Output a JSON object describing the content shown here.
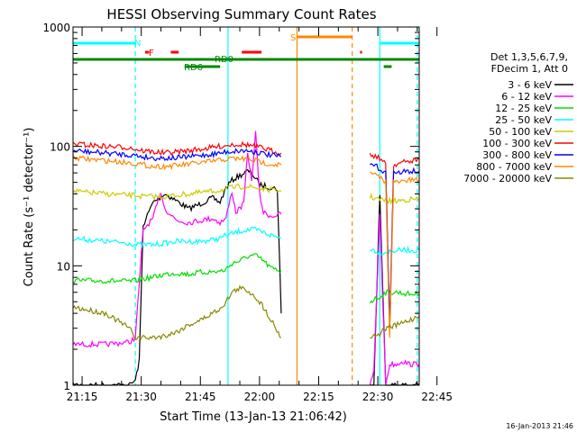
{
  "chart_data": {
    "type": "line",
    "title": "HESSI Observing Summary Count Rates",
    "xlabel": "Start Time (13-Jan-13 21:06:42)",
    "ylabel": "Count Rate (s⁻¹ detector⁻¹)",
    "ylog": true,
    "ylim": [
      1,
      1000
    ],
    "xlim_min": [
      6.7,
      94.5
    ],
    "x_unit": "minutes after 21:06",
    "x_tick_labels": [
      "21:15",
      "21:30",
      "21:45",
      "22:00",
      "22:15",
      "22:30",
      "22:45"
    ],
    "x_tick_values": [
      9,
      24,
      39,
      54,
      69,
      84,
      99
    ],
    "y_tick_labels": [
      "1",
      "10",
      "100",
      "1000"
    ],
    "y_tick_values": [
      1,
      10,
      100,
      1000
    ],
    "legend_header": [
      "Det 1,3,5,6,7,9,",
      "FDecim 1, Att 0"
    ],
    "legend_position": "right",
    "footer_date": "16-Jan-2013 21:46",
    "series": [
      {
        "name": "3 - 6 keV",
        "color": "#000000",
        "points": [
          [
            6.7,
            1.0
          ],
          [
            21,
            1.0
          ],
          [
            22.5,
            1.1
          ],
          [
            23.5,
            1.6
          ],
          [
            24.5,
            22
          ],
          [
            27,
            34
          ],
          [
            30,
            40
          ],
          [
            33,
            35
          ],
          [
            36,
            30
          ],
          [
            39,
            33
          ],
          [
            42,
            37
          ],
          [
            44,
            34
          ],
          [
            45.5,
            45
          ],
          [
            47,
            52
          ],
          [
            49,
            57
          ],
          [
            51,
            62
          ],
          [
            52,
            60
          ],
          [
            54,
            48
          ],
          [
            56,
            46
          ],
          [
            58.5,
            44
          ],
          [
            59.5,
            4
          ]
        ],
        "points2": [
          [
            82,
            1.0
          ],
          [
            83,
            1.0
          ],
          [
            84.5,
            40
          ],
          [
            86,
            1.0
          ],
          [
            87,
            1.0
          ],
          [
            89,
            1.0
          ],
          [
            90,
            1.0
          ],
          [
            94.5,
            1.0
          ]
        ]
      },
      {
        "name": "6 - 12 keV",
        "color": "#ff00ff",
        "points": [
          [
            6.7,
            2.2
          ],
          [
            15,
            2.2
          ],
          [
            21,
            2.3
          ],
          [
            22.5,
            2.5
          ],
          [
            24.5,
            20
          ],
          [
            27,
            25
          ],
          [
            29,
            42
          ],
          [
            30,
            30
          ],
          [
            33,
            24
          ],
          [
            36,
            23
          ],
          [
            39,
            24
          ],
          [
            42,
            25
          ],
          [
            44,
            23
          ],
          [
            45.5,
            25
          ],
          [
            47,
            42
          ],
          [
            48,
            28
          ],
          [
            50,
            33
          ],
          [
            51,
            90
          ],
          [
            52,
            50
          ],
          [
            53,
            130
          ],
          [
            54,
            40
          ],
          [
            55,
            28
          ],
          [
            57,
            26
          ],
          [
            59.5,
            27
          ]
        ],
        "points2": [
          [
            82,
            1.0
          ],
          [
            83,
            1.3
          ],
          [
            84.5,
            28
          ],
          [
            86,
            1.0
          ],
          [
            87,
            1.5
          ],
          [
            89,
            1.5
          ],
          [
            90,
            1.6
          ],
          [
            92,
            1.5
          ],
          [
            94.5,
            1.5
          ]
        ]
      },
      {
        "name": "12 - 25 keV",
        "color": "#00dd00",
        "points": [
          [
            6.7,
            7.5
          ],
          [
            15,
            7.5
          ],
          [
            21,
            7.4
          ],
          [
            22.5,
            7.5
          ],
          [
            24.5,
            7.8
          ],
          [
            27,
            8.0
          ],
          [
            30,
            8.5
          ],
          [
            33,
            8.7
          ],
          [
            36,
            8.5
          ],
          [
            39,
            8.8
          ],
          [
            42,
            8.9
          ],
          [
            44,
            9.0
          ],
          [
            45.5,
            9.3
          ],
          [
            47,
            10.5
          ],
          [
            49,
            11
          ],
          [
            51,
            12
          ],
          [
            53,
            12.2
          ],
          [
            55,
            11
          ],
          [
            57,
            9.5
          ],
          [
            59.5,
            9.0
          ]
        ],
        "points2": [
          [
            82,
            5.0
          ],
          [
            83,
            5.2
          ],
          [
            84.5,
            5.5
          ],
          [
            86,
            6
          ],
          [
            89,
            6
          ],
          [
            92,
            5.8
          ],
          [
            94.5,
            5.8
          ]
        ]
      },
      {
        "name": "25 - 50 keV",
        "color": "#00ffff",
        "points": [
          [
            6.7,
            17
          ],
          [
            15,
            16
          ],
          [
            21,
            15.5
          ],
          [
            22.5,
            15
          ],
          [
            24.5,
            15
          ],
          [
            27,
            15
          ],
          [
            30,
            15.5
          ],
          [
            33,
            16
          ],
          [
            36,
            16
          ],
          [
            39,
            16
          ],
          [
            42,
            16.5
          ],
          [
            44,
            17
          ],
          [
            45.5,
            18
          ],
          [
            47,
            18.5
          ],
          [
            49,
            19.5
          ],
          [
            51,
            20
          ],
          [
            53,
            20
          ],
          [
            55,
            19
          ],
          [
            57,
            18
          ],
          [
            59.5,
            17
          ]
        ],
        "points2": [
          [
            82,
            14
          ],
          [
            83,
            13.5
          ],
          [
            84.5,
            13
          ],
          [
            86,
            13
          ],
          [
            89,
            13.5
          ],
          [
            92,
            13.5
          ],
          [
            94.5,
            13.5
          ]
        ]
      },
      {
        "name": "50 - 100 keV",
        "color": "#cccc00",
        "points": [
          [
            6.7,
            42
          ],
          [
            15,
            40
          ],
          [
            21,
            39
          ],
          [
            22.5,
            39
          ],
          [
            24.5,
            38
          ],
          [
            27,
            38
          ],
          [
            30,
            38
          ],
          [
            33,
            39
          ],
          [
            36,
            40
          ],
          [
            39,
            41
          ],
          [
            42,
            42
          ],
          [
            44,
            43
          ],
          [
            45.5,
            44
          ],
          [
            47,
            45
          ],
          [
            49,
            46
          ],
          [
            51,
            46
          ],
          [
            53,
            45
          ],
          [
            55,
            44
          ],
          [
            57,
            43
          ],
          [
            59.5,
            42
          ]
        ],
        "points2": [
          [
            82,
            38
          ],
          [
            83,
            37
          ],
          [
            84.5,
            36
          ],
          [
            86,
            35
          ],
          [
            89,
            35
          ],
          [
            92,
            36
          ],
          [
            94.5,
            36
          ]
        ]
      },
      {
        "name": "100 - 300 keV",
        "color": "#ff0000",
        "points": [
          [
            6.7,
            105
          ],
          [
            15,
            100
          ],
          [
            21,
            98
          ],
          [
            22.5,
            95
          ],
          [
            24.5,
            92
          ],
          [
            27,
            90
          ],
          [
            30,
            88
          ],
          [
            33,
            90
          ],
          [
            36,
            92
          ],
          [
            39,
            95
          ],
          [
            42,
            98
          ],
          [
            44,
            100
          ],
          [
            45.5,
            102
          ],
          [
            47,
            104
          ],
          [
            49,
            104
          ],
          [
            51,
            103
          ],
          [
            53,
            100
          ],
          [
            55,
            96
          ],
          [
            57,
            92
          ],
          [
            59.5,
            88
          ]
        ],
        "points2": [
          [
            82,
            85
          ],
          [
            83,
            84
          ],
          [
            84.5,
            80
          ],
          [
            86,
            70
          ],
          [
            87,
            3
          ],
          [
            88,
            70
          ],
          [
            89,
            72
          ],
          [
            92,
            75
          ],
          [
            94.5,
            78
          ]
        ]
      },
      {
        "name": "300 - 800 keV",
        "color": "#0000ff",
        "points": [
          [
            6.7,
            92
          ],
          [
            15,
            88
          ],
          [
            21,
            85
          ],
          [
            22.5,
            84
          ],
          [
            24.5,
            82
          ],
          [
            27,
            80
          ],
          [
            30,
            80
          ],
          [
            33,
            80
          ],
          [
            36,
            82
          ],
          [
            39,
            84
          ],
          [
            42,
            86
          ],
          [
            44,
            88
          ],
          [
            45.5,
            90
          ],
          [
            47,
            91
          ],
          [
            49,
            92
          ],
          [
            51,
            92
          ],
          [
            53,
            90
          ],
          [
            55,
            87
          ],
          [
            57,
            84
          ],
          [
            59.5,
            82
          ]
        ],
        "points2": [
          [
            82,
            70
          ],
          [
            83,
            70
          ],
          [
            84.5,
            65
          ],
          [
            86,
            60
          ],
          [
            87,
            3.2
          ],
          [
            88,
            60
          ],
          [
            89,
            60
          ],
          [
            92,
            62
          ],
          [
            94.5,
            62
          ]
        ]
      },
      {
        "name": "800 - 7000 keV",
        "color": "#ff8800",
        "points": [
          [
            6.7,
            80
          ],
          [
            15,
            76
          ],
          [
            21,
            73
          ],
          [
            22.5,
            72
          ],
          [
            24.5,
            70
          ],
          [
            27,
            68
          ],
          [
            30,
            68
          ],
          [
            33,
            69
          ],
          [
            36,
            71
          ],
          [
            39,
            73
          ],
          [
            42,
            75
          ],
          [
            44,
            77
          ],
          [
            45.5,
            78
          ],
          [
            47,
            79
          ],
          [
            49,
            79
          ],
          [
            51,
            78
          ],
          [
            53,
            76
          ],
          [
            55,
            73
          ],
          [
            57,
            71
          ],
          [
            59.5,
            70
          ]
        ],
        "points2": [
          [
            82,
            60
          ],
          [
            83,
            58
          ],
          [
            84.5,
            55
          ],
          [
            86,
            50
          ],
          [
            87,
            2.6
          ],
          [
            88,
            50
          ],
          [
            89,
            50
          ],
          [
            92,
            52
          ],
          [
            94.5,
            52
          ]
        ]
      },
      {
        "name": "7000 - 20000 keV",
        "color": "#888800",
        "points": [
          [
            6.7,
            4.5
          ],
          [
            15,
            4.0
          ],
          [
            21,
            3.0
          ],
          [
            22.5,
            2.5
          ],
          [
            24.5,
            2.5
          ],
          [
            27,
            2.5
          ],
          [
            30,
            2.6
          ],
          [
            33,
            2.8
          ],
          [
            36,
            3.2
          ],
          [
            39,
            3.5
          ],
          [
            42,
            4.0
          ],
          [
            44,
            4.4
          ],
          [
            45.5,
            5.0
          ],
          [
            47,
            6.0
          ],
          [
            49,
            6.5
          ],
          [
            51,
            6.2
          ],
          [
            53,
            5.5
          ],
          [
            55,
            4.5
          ],
          [
            57,
            3.5
          ],
          [
            59.5,
            2.5
          ]
        ],
        "points2": [
          [
            82,
            2.5
          ],
          [
            83,
            2.6
          ],
          [
            84.5,
            2.7
          ],
          [
            86,
            3.0
          ],
          [
            89,
            3.2
          ],
          [
            92,
            3.5
          ],
          [
            94.5,
            3.8
          ]
        ]
      }
    ],
    "flag_bars": [
      {
        "label": "N",
        "color": "#00ffff",
        "level": 1,
        "segments": [
          [
            6.7,
            22.5
          ],
          [
            84.5,
            94.5
          ]
        ]
      },
      {
        "label": "F",
        "color": "#ff0000",
        "level": 2,
        "segments": [
          [
            25,
            26
          ],
          [
            31.5,
            33.5
          ],
          [
            49.5,
            54.5
          ],
          [
            79.5,
            80
          ]
        ]
      },
      {
        "label": "S",
        "color": "#ff8800",
        "level": 0,
        "segments": [
          [
            63.5,
            77.5
          ]
        ]
      },
      {
        "label": "RD0",
        "color": "#008800",
        "level": 3,
        "segments": [
          [
            6.7,
            94.5
          ]
        ]
      },
      {
        "label": "RD6",
        "color": "#008800",
        "level": 4,
        "segments": [
          [
            35,
            44
          ],
          [
            85.5,
            87.5
          ]
        ]
      }
    ],
    "vlines": [
      {
        "x": 22.5,
        "color": "#00ffff",
        "dashed": true
      },
      {
        "x": 46,
        "color": "#00ffff",
        "dashed": false
      },
      {
        "x": 84.5,
        "color": "#00ffff",
        "dashed": false
      },
      {
        "x": 94,
        "color": "#00ffff",
        "dashed": true
      },
      {
        "x": 63.5,
        "color": "#ff8800",
        "dashed": false
      },
      {
        "x": 77.5,
        "color": "#ff8800",
        "dashed": true
      }
    ]
  }
}
